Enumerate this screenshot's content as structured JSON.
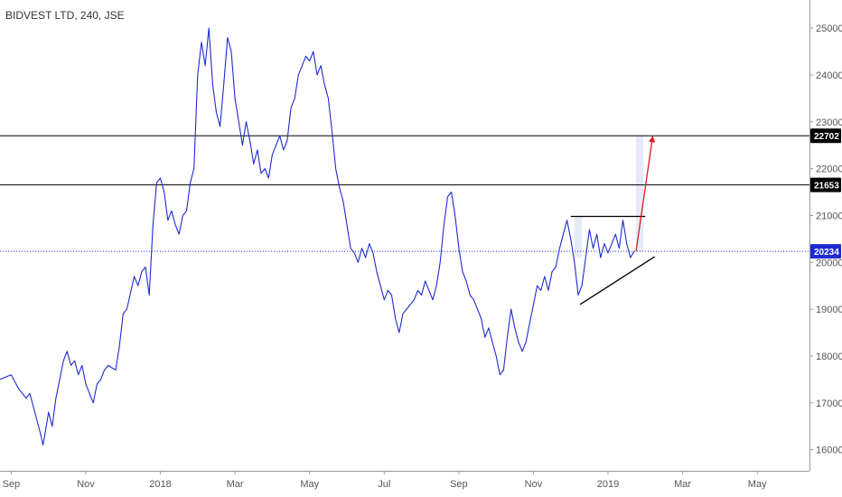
{
  "header": {
    "title": "BIDVEST LTD, 240, JSE"
  },
  "colors": {
    "price_line": "#1e2bd1",
    "current_price": "#1e2bd1",
    "level_line": "#000000",
    "projection": "#e0191f",
    "pattern_line": "#000000",
    "highlight": "#dfe8f5",
    "axis_text": "#555555",
    "axis_line": "#999999"
  },
  "chart_data": {
    "type": "line",
    "title": "BIDVEST LTD, 240, JSE",
    "xlabel": "",
    "ylabel": "",
    "x_ticks": [
      "Sep",
      "Nov",
      "2018",
      "Mar",
      "May",
      "Jul",
      "Sep",
      "Nov",
      "2019",
      "Mar",
      "May"
    ],
    "x_tick_positions": [
      0,
      2,
      4,
      6,
      8,
      10,
      12,
      14,
      16,
      18,
      20
    ],
    "y_ticks": [
      16000,
      17000,
      18000,
      19000,
      20000,
      21000,
      22000,
      23000,
      24000,
      25000
    ],
    "ylim": [
      15550,
      25600
    ],
    "xlim": [
      -0.3,
      21.4
    ],
    "grid": false,
    "series": [
      {
        "values": [
          [
            -0.3,
            17500
          ],
          [
            0,
            17600
          ],
          [
            0.2,
            17300
          ],
          [
            0.4,
            17100
          ],
          [
            0.5,
            17200
          ],
          [
            0.6,
            16900
          ],
          [
            0.7,
            16600
          ],
          [
            0.8,
            16300
          ],
          [
            0.85,
            16100
          ],
          [
            0.9,
            16300
          ],
          [
            1.0,
            16800
          ],
          [
            1.1,
            16500
          ],
          [
            1.2,
            17100
          ],
          [
            1.3,
            17500
          ],
          [
            1.4,
            17900
          ],
          [
            1.5,
            18100
          ],
          [
            1.6,
            17800
          ],
          [
            1.7,
            17900
          ],
          [
            1.8,
            17600
          ],
          [
            1.9,
            17800
          ],
          [
            2.0,
            17400
          ],
          [
            2.1,
            17200
          ],
          [
            2.2,
            17000
          ],
          [
            2.3,
            17400
          ],
          [
            2.4,
            17500
          ],
          [
            2.5,
            17700
          ],
          [
            2.6,
            17800
          ],
          [
            2.8,
            17700
          ],
          [
            2.9,
            18200
          ],
          [
            3.0,
            18900
          ],
          [
            3.1,
            19000
          ],
          [
            3.3,
            19700
          ],
          [
            3.4,
            19500
          ],
          [
            3.5,
            19800
          ],
          [
            3.6,
            19900
          ],
          [
            3.7,
            19300
          ],
          [
            3.8,
            20800
          ],
          [
            3.9,
            21700
          ],
          [
            4.0,
            21800
          ],
          [
            4.1,
            21500
          ],
          [
            4.2,
            20900
          ],
          [
            4.3,
            21100
          ],
          [
            4.4,
            20800
          ],
          [
            4.5,
            20600
          ],
          [
            4.6,
            21000
          ],
          [
            4.7,
            21100
          ],
          [
            4.8,
            21700
          ],
          [
            4.9,
            22000
          ],
          [
            5.0,
            24000
          ],
          [
            5.1,
            24700
          ],
          [
            5.2,
            24200
          ],
          [
            5.3,
            25000
          ],
          [
            5.4,
            23800
          ],
          [
            5.5,
            23200
          ],
          [
            5.6,
            22900
          ],
          [
            5.7,
            23800
          ],
          [
            5.8,
            24800
          ],
          [
            5.9,
            24500
          ],
          [
            6.0,
            23500
          ],
          [
            6.1,
            23000
          ],
          [
            6.2,
            22500
          ],
          [
            6.3,
            23000
          ],
          [
            6.4,
            22600
          ],
          [
            6.5,
            22100
          ],
          [
            6.6,
            22400
          ],
          [
            6.7,
            21900
          ],
          [
            6.8,
            22000
          ],
          [
            6.9,
            21800
          ],
          [
            7.0,
            22300
          ],
          [
            7.1,
            22500
          ],
          [
            7.2,
            22700
          ],
          [
            7.3,
            22400
          ],
          [
            7.4,
            22600
          ],
          [
            7.5,
            23300
          ],
          [
            7.6,
            23500
          ],
          [
            7.7,
            24000
          ],
          [
            7.8,
            24200
          ],
          [
            7.9,
            24400
          ],
          [
            8.0,
            24300
          ],
          [
            8.1,
            24500
          ],
          [
            8.2,
            24000
          ],
          [
            8.3,
            24200
          ],
          [
            8.4,
            23800
          ],
          [
            8.5,
            23500
          ],
          [
            8.6,
            22800
          ],
          [
            8.7,
            22000
          ],
          [
            8.8,
            21600
          ],
          [
            8.9,
            21300
          ],
          [
            9.0,
            20800
          ],
          [
            9.1,
            20300
          ],
          [
            9.2,
            20200
          ],
          [
            9.3,
            20000
          ],
          [
            9.4,
            20300
          ],
          [
            9.5,
            20100
          ],
          [
            9.6,
            20400
          ],
          [
            9.7,
            20200
          ],
          [
            9.8,
            19800
          ],
          [
            9.9,
            19500
          ],
          [
            10.0,
            19200
          ],
          [
            10.1,
            19400
          ],
          [
            10.2,
            19300
          ],
          [
            10.3,
            18800
          ],
          [
            10.4,
            18500
          ],
          [
            10.5,
            18900
          ],
          [
            10.6,
            19000
          ],
          [
            10.7,
            19100
          ],
          [
            10.8,
            19200
          ],
          [
            10.9,
            19400
          ],
          [
            11.0,
            19300
          ],
          [
            11.1,
            19600
          ],
          [
            11.2,
            19400
          ],
          [
            11.3,
            19200
          ],
          [
            11.4,
            19500
          ],
          [
            11.5,
            20000
          ],
          [
            11.6,
            20800
          ],
          [
            11.7,
            21400
          ],
          [
            11.8,
            21500
          ],
          [
            11.9,
            21000
          ],
          [
            12.0,
            20300
          ],
          [
            12.1,
            19800
          ],
          [
            12.2,
            19600
          ],
          [
            12.3,
            19300
          ],
          [
            12.4,
            19200
          ],
          [
            12.5,
            19000
          ],
          [
            12.6,
            18800
          ],
          [
            12.7,
            18400
          ],
          [
            12.8,
            18600
          ],
          [
            12.9,
            18300
          ],
          [
            13.0,
            18000
          ],
          [
            13.1,
            17600
          ],
          [
            13.2,
            17700
          ],
          [
            13.3,
            18400
          ],
          [
            13.4,
            19000
          ],
          [
            13.5,
            18600
          ],
          [
            13.6,
            18300
          ],
          [
            13.7,
            18100
          ],
          [
            13.8,
            18300
          ],
          [
            13.9,
            18700
          ],
          [
            14.0,
            19100
          ],
          [
            14.1,
            19500
          ],
          [
            14.2,
            19400
          ],
          [
            14.3,
            19700
          ],
          [
            14.4,
            19400
          ],
          [
            14.5,
            19800
          ],
          [
            14.6,
            19900
          ],
          [
            14.7,
            20300
          ],
          [
            14.8,
            20600
          ],
          [
            14.9,
            20900
          ],
          [
            15.0,
            20500
          ],
          [
            15.1,
            20000
          ],
          [
            15.2,
            19300
          ],
          [
            15.3,
            19500
          ],
          [
            15.4,
            20100
          ],
          [
            15.5,
            20700
          ],
          [
            15.6,
            20300
          ],
          [
            15.7,
            20600
          ],
          [
            15.8,
            20100
          ],
          [
            15.9,
            20400
          ],
          [
            16.0,
            20200
          ],
          [
            16.1,
            20400
          ],
          [
            16.2,
            20600
          ],
          [
            16.3,
            20300
          ],
          [
            16.4,
            20900
          ],
          [
            16.5,
            20400
          ],
          [
            16.6,
            20100
          ],
          [
            16.7,
            20234
          ]
        ]
      }
    ],
    "horizontal_levels": [
      {
        "value": 22702,
        "label": "22702"
      },
      {
        "value": 21653,
        "label": "21653"
      }
    ],
    "current_price": {
      "value": 20234,
      "label": "20234"
    },
    "annotations": {
      "resistance_segment": {
        "x": [
          15.0,
          17.0
        ],
        "y": 20980
      },
      "support_segment": {
        "x": [
          15.25,
          17.25
        ],
        "y": [
          19100,
          20120
        ]
      },
      "projection_arrow": {
        "x": [
          16.75,
          17.2
        ],
        "y": [
          20234,
          22702
        ]
      },
      "highlight_bands": [
        {
          "x": [
            15.1,
            15.3
          ],
          "y": [
            20100,
            20980
          ]
        },
        {
          "x": [
            16.75,
            16.95
          ],
          "y": [
            20240,
            22702
          ]
        }
      ]
    }
  }
}
